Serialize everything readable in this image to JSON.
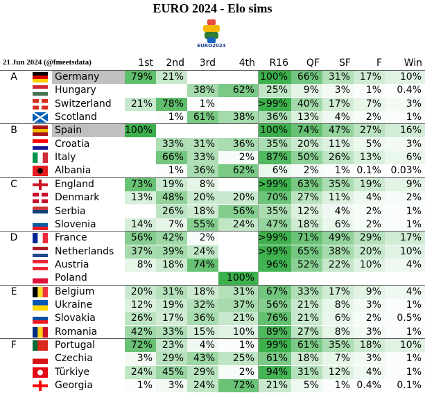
{
  "header": {
    "title": "EURO 2024 - Elo sims",
    "logo_text": "EURO2024",
    "date": "21 Jun 2024 (@fmeetsdata)",
    "columns": [
      "1st",
      "2nd",
      "3rd",
      "4th",
      "R16",
      "QF",
      "SF",
      "F",
      "Win"
    ]
  },
  "groups": [
    {
      "label": "A",
      "teams": [
        {
          "name": "Germany",
          "highlight": true,
          "cells": [
            "79%",
            "21%",
            null,
            null,
            "100%",
            "66%",
            "31%",
            "17%",
            "10%"
          ]
        },
        {
          "name": "Hungary",
          "cells": [
            null,
            null,
            "38%",
            "62%",
            "25%",
            "9%",
            "3%",
            "1%",
            "0.4%"
          ]
        },
        {
          "name": "Switzerland",
          "cells": [
            "21%",
            "78%",
            "1%",
            null,
            ">99%",
            "40%",
            "17%",
            "7%",
            "3%"
          ]
        },
        {
          "name": "Scotland",
          "cells": [
            null,
            "1%",
            "61%",
            "38%",
            "36%",
            "13%",
            "4%",
            "2%",
            "1%"
          ]
        }
      ]
    },
    {
      "label": "B",
      "teams": [
        {
          "name": "Spain",
          "highlight": true,
          "cells": [
            "100%",
            null,
            null,
            null,
            "100%",
            "74%",
            "47%",
            "27%",
            "16%"
          ]
        },
        {
          "name": "Croatia",
          "cells": [
            null,
            "33%",
            "31%",
            "36%",
            "35%",
            "20%",
            "11%",
            "5%",
            "3%"
          ]
        },
        {
          "name": "Italy",
          "cells": [
            null,
            "66%",
            "33%",
            "2%",
            "87%",
            "50%",
            "26%",
            "13%",
            "6%"
          ]
        },
        {
          "name": "Albania",
          "cells": [
            null,
            "1%",
            "36%",
            "62%",
            "6%",
            "2%",
            "1%",
            "0.1%",
            "0.03%"
          ]
        }
      ]
    },
    {
      "label": "C",
      "teams": [
        {
          "name": "England",
          "cells": [
            "73%",
            "19%",
            "8%",
            null,
            ">99%",
            "63%",
            "35%",
            "19%",
            "9%"
          ]
        },
        {
          "name": "Denmark",
          "cells": [
            "13%",
            "48%",
            "20%",
            "20%",
            "70%",
            "27%",
            "11%",
            "4%",
            "2%"
          ]
        },
        {
          "name": "Serbia",
          "cells": [
            null,
            "26%",
            "18%",
            "56%",
            "35%",
            "12%",
            "4%",
            "2%",
            "1%"
          ]
        },
        {
          "name": "Slovenia",
          "cells": [
            "14%",
            "7%",
            "55%",
            "24%",
            "47%",
            "18%",
            "6%",
            "2%",
            "1%"
          ]
        }
      ]
    },
    {
      "label": "D",
      "teams": [
        {
          "name": "France",
          "cells": [
            "56%",
            "42%",
            "2%",
            null,
            ">99%",
            "71%",
            "49%",
            "29%",
            "17%"
          ]
        },
        {
          "name": "Netherlands",
          "cells": [
            "37%",
            "39%",
            "24%",
            null,
            ">99%",
            "65%",
            "38%",
            "20%",
            "10%"
          ]
        },
        {
          "name": "Austria",
          "cells": [
            "8%",
            "18%",
            "74%",
            null,
            "96%",
            "52%",
            "22%",
            "10%",
            "4%"
          ]
        },
        {
          "name": "Poland",
          "cells": [
            null,
            null,
            null,
            "100%",
            null,
            null,
            null,
            null,
            null
          ]
        }
      ]
    },
    {
      "label": "E",
      "teams": [
        {
          "name": "Belgium",
          "cells": [
            "20%",
            "31%",
            "18%",
            "31%",
            "67%",
            "33%",
            "17%",
            "9%",
            "4%"
          ]
        },
        {
          "name": "Ukraine",
          "cells": [
            "12%",
            "19%",
            "32%",
            "37%",
            "56%",
            "21%",
            "8%",
            "3%",
            "1%"
          ]
        },
        {
          "name": "Slovakia",
          "cells": [
            "26%",
            "17%",
            "36%",
            "21%",
            "76%",
            "21%",
            "6%",
            "2%",
            "0.5%"
          ]
        },
        {
          "name": "Romania",
          "cells": [
            "42%",
            "33%",
            "15%",
            "10%",
            "89%",
            "27%",
            "8%",
            "3%",
            "1%"
          ]
        }
      ]
    },
    {
      "label": "F",
      "teams": [
        {
          "name": "Portugal",
          "cells": [
            "72%",
            "23%",
            "4%",
            "1%",
            "99%",
            "61%",
            "35%",
            "18%",
            "10%"
          ]
        },
        {
          "name": "Czechia",
          "cells": [
            "3%",
            "29%",
            "43%",
            "25%",
            "61%",
            "18%",
            "7%",
            "3%",
            "1%"
          ]
        },
        {
          "name": "Türkiye",
          "cells": [
            "24%",
            "45%",
            "29%",
            "2%",
            "94%",
            "31%",
            "12%",
            "4%",
            "1%"
          ]
        },
        {
          "name": "Georgia",
          "cells": [
            "1%",
            "3%",
            "24%",
            "72%",
            "21%",
            "5%",
            "1%",
            "0.4%",
            "0.1%"
          ]
        }
      ]
    }
  ]
}
